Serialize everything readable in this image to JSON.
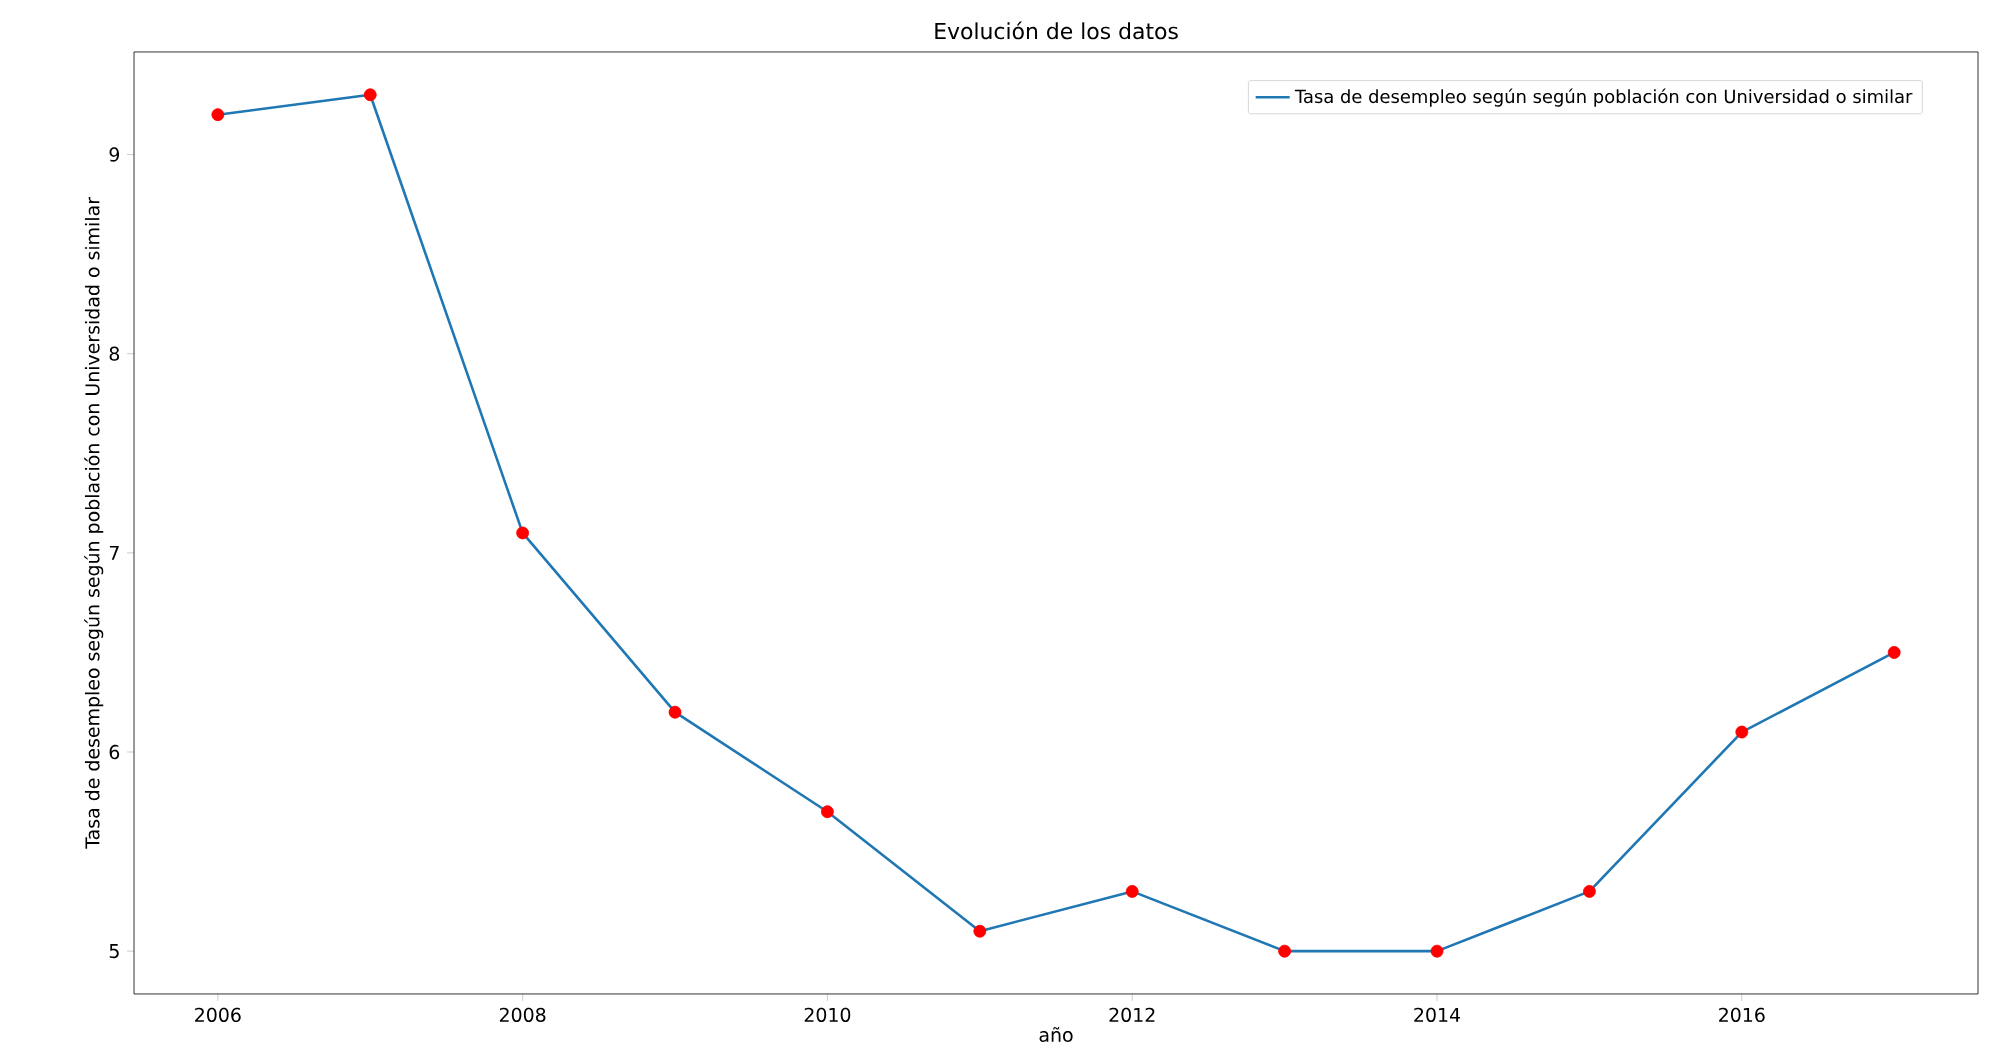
{
  "chart_data": {
    "type": "line",
    "title": "Evolución de los datos",
    "xlabel": "año",
    "ylabel": "Tasa de desempleo según según población con Universidad o similar",
    "x": [
      2006,
      2007,
      2008,
      2009,
      2010,
      2011,
      2012,
      2013,
      2014,
      2015,
      2016,
      2017
    ],
    "series": [
      {
        "name": "Tasa de desempleo según según población con Universidad o similar",
        "color": "#1f77b4",
        "values": [
          9.2,
          9.3,
          7.1,
          6.2,
          5.7,
          5.1,
          5.3,
          5.0,
          5.0,
          5.3,
          6.1,
          6.5
        ]
      },
      {
        "type": "scatter",
        "color": "#ff0000",
        "marker": "circle",
        "values": [
          9.2,
          9.3,
          7.1,
          6.2,
          5.7,
          5.1,
          5.3,
          5.0,
          5.0,
          5.3,
          6.1,
          6.5
        ]
      }
    ],
    "xlim": [
      2005.45,
      2017.55
    ],
    "ylim": [
      4.785,
      9.515
    ],
    "xticks": [
      2006,
      2008,
      2010,
      2012,
      2014,
      2016
    ],
    "yticks": [
      5,
      6,
      7,
      8,
      9
    ],
    "legend": "top right",
    "grid": false
  }
}
